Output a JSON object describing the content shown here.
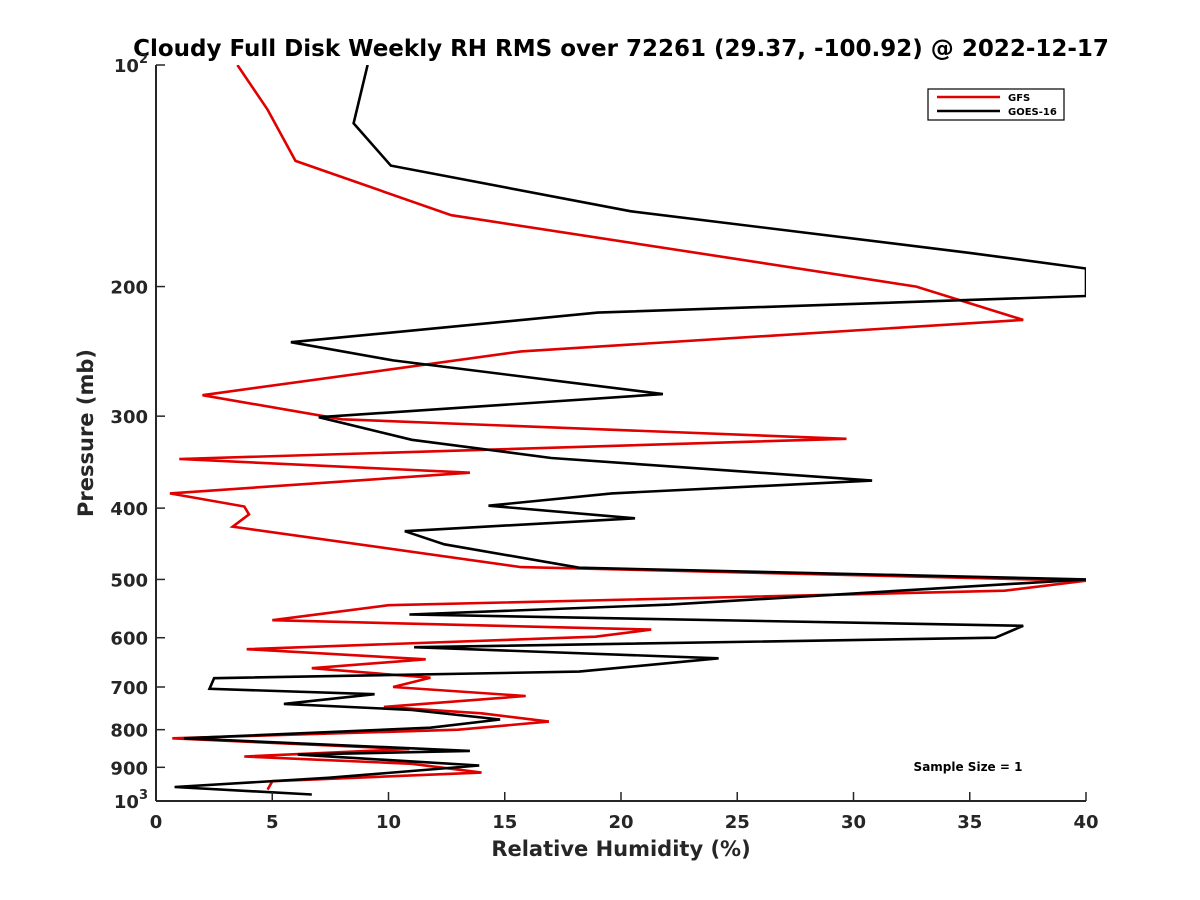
{
  "chart_data": {
    "type": "line",
    "orientation": "profile",
    "title": "Cloudy Full Disk Weekly RH RMS over 72261 (29.37, -100.92) @ 2022-12-17",
    "xlabel": "Relative Humidity (%)",
    "ylabel": "Pressure (mb)",
    "xlim": [
      0,
      40
    ],
    "ylim": [
      100,
      1000
    ],
    "yscale": "log",
    "y_reversed": true,
    "grid": false,
    "legend_position": "top-right",
    "x_ticks": [
      0,
      5,
      10,
      15,
      20,
      25,
      30,
      35,
      40
    ],
    "x_tick_labels": [
      "0",
      "5",
      "10",
      "15",
      "20",
      "25",
      "30",
      "35",
      "40"
    ],
    "y_ticks": [
      100,
      200,
      300,
      400,
      500,
      600,
      700,
      800,
      900,
      1000
    ],
    "y_tick_labels": [
      {
        "base": "10",
        "exp": "2"
      },
      {
        "base": "200",
        "exp": ""
      },
      {
        "base": "300",
        "exp": ""
      },
      {
        "base": "400",
        "exp": ""
      },
      {
        "base": "500",
        "exp": ""
      },
      {
        "base": "600",
        "exp": ""
      },
      {
        "base": "700",
        "exp": ""
      },
      {
        "base": "800",
        "exp": ""
      },
      {
        "base": "900",
        "exp": ""
      },
      {
        "base": "10",
        "exp": "3"
      }
    ],
    "annotation": "Sample Size = 1",
    "series": [
      {
        "name": "GFS",
        "color": "#e00000",
        "points": [
          [
            3.5,
            100
          ],
          [
            4.8,
            115
          ],
          [
            6.0,
            135
          ],
          [
            12.7,
            160
          ],
          [
            32.7,
            200
          ],
          [
            37.3,
            222
          ],
          [
            15.7,
            245
          ],
          [
            2.0,
            281
          ],
          [
            8.0,
            303
          ],
          [
            29.7,
            322
          ],
          [
            1.0,
            343
          ],
          [
            13.5,
            358
          ],
          [
            0.6,
            382
          ],
          [
            3.8,
            398
          ],
          [
            4.0,
            408
          ],
          [
            3.3,
            424
          ],
          [
            15.7,
            481
          ],
          [
            40.0,
            502
          ],
          [
            36.5,
            518
          ],
          [
            10.0,
            542
          ],
          [
            5.0,
            568
          ],
          [
            21.3,
            585
          ],
          [
            18.9,
            598
          ],
          [
            3.9,
            622
          ],
          [
            11.6,
            642
          ],
          [
            6.7,
            660
          ],
          [
            11.8,
            680
          ],
          [
            10.2,
            700
          ],
          [
            15.9,
            720
          ],
          [
            9.8,
            745
          ],
          [
            14.0,
            760
          ],
          [
            16.9,
            780
          ],
          [
            13.0,
            800
          ],
          [
            0.7,
            822
          ],
          [
            10.9,
            850
          ],
          [
            3.8,
            870
          ],
          [
            11.0,
            890
          ],
          [
            14.0,
            915
          ],
          [
            5.0,
            940
          ],
          [
            4.8,
            965
          ]
        ]
      },
      {
        "name": "GOES-16",
        "color": "#000000",
        "points": [
          [
            9.1,
            100
          ],
          [
            8.5,
            120
          ],
          [
            10.1,
            137
          ],
          [
            20.4,
            158
          ],
          [
            35.0,
            180
          ],
          [
            40.0,
            189
          ],
          [
            40.0,
            206
          ],
          [
            19.0,
            217
          ],
          [
            5.8,
            238
          ],
          [
            10.2,
            252
          ],
          [
            21.8,
            280
          ],
          [
            7.0,
            301
          ],
          [
            11.0,
            323
          ],
          [
            17.0,
            342
          ],
          [
            30.8,
            367
          ],
          [
            19.6,
            382
          ],
          [
            14.3,
            397
          ],
          [
            20.6,
            413
          ],
          [
            10.7,
            430
          ],
          [
            12.4,
            448
          ],
          [
            18.2,
            482
          ],
          [
            40.0,
            500
          ],
          [
            22.1,
            541
          ],
          [
            10.9,
            558
          ],
          [
            37.3,
            578
          ],
          [
            36.1,
            600
          ],
          [
            11.1,
            618
          ],
          [
            24.2,
            640
          ],
          [
            18.2,
            667
          ],
          [
            2.5,
            681
          ],
          [
            2.3,
            704
          ],
          [
            9.4,
            716
          ],
          [
            5.5,
            738
          ],
          [
            11.0,
            752
          ],
          [
            14.8,
            775
          ],
          [
            11.8,
            795
          ],
          [
            1.2,
            822
          ],
          [
            13.5,
            855
          ],
          [
            6.1,
            865
          ],
          [
            13.9,
            895
          ],
          [
            7.4,
            930
          ],
          [
            0.8,
            957
          ],
          [
            6.7,
            980
          ]
        ]
      }
    ]
  }
}
